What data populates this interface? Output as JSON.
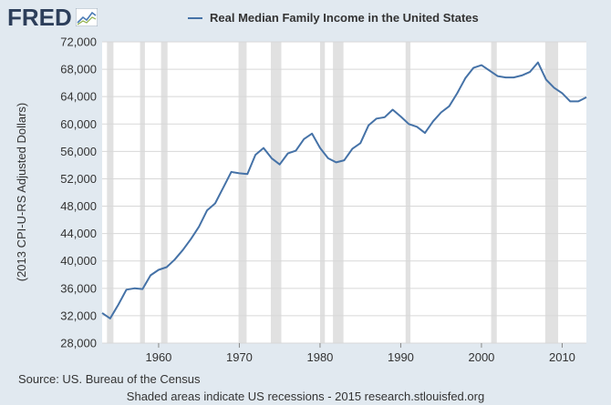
{
  "header": {
    "logo_text": "FRED",
    "logo_icon": "fred-chart-icon"
  },
  "legend": {
    "label": "Real Median Family Income in the United States"
  },
  "footer": {
    "source": "Source: US. Bureau of the Census",
    "note": "Shaded areas indicate US recessions - 2015 research.stlouisfed.org"
  },
  "colors": {
    "line": "#4572a7",
    "background": "#e1e9f0",
    "plot_bg": "#ffffff",
    "recession": "#e1e1e1",
    "grid": "#dddddd",
    "logo": "#2c3e5a"
  },
  "chart_data": {
    "type": "line",
    "title": "Real Median Family Income in the United States",
    "xlabel": "",
    "ylabel": "(2013 CPI-U-RS Adjusted Dollars)",
    "xlim": [
      1953,
      2013
    ],
    "ylim": [
      28000,
      72000
    ],
    "grid": "horizontal",
    "legend_position": "top",
    "x_ticks": [
      1960,
      1970,
      1980,
      1990,
      2000,
      2010
    ],
    "y_ticks": [
      28000,
      32000,
      36000,
      40000,
      44000,
      48000,
      52000,
      56000,
      60000,
      64000,
      68000,
      72000
    ],
    "y_tick_labels": [
      "28,000",
      "32,000",
      "36,000",
      "40,000",
      "44,000",
      "48,000",
      "52,000",
      "56,000",
      "60,000",
      "64,000",
      "68,000",
      "72,000"
    ],
    "recessions": [
      [
        1953.6,
        1954.4
      ],
      [
        1957.7,
        1958.3
      ],
      [
        1960.3,
        1961.1
      ],
      [
        1969.9,
        1970.9
      ],
      [
        1973.9,
        1975.2
      ],
      [
        1980.0,
        1980.6
      ],
      [
        1981.6,
        1982.9
      ],
      [
        1990.6,
        1991.2
      ],
      [
        2001.2,
        2001.9
      ],
      [
        2007.9,
        2009.5
      ]
    ],
    "series": [
      {
        "name": "Real Median Family Income in the United States",
        "x": [
          1953,
          1954,
          1955,
          1956,
          1957,
          1958,
          1959,
          1960,
          1961,
          1962,
          1963,
          1964,
          1965,
          1966,
          1967,
          1968,
          1969,
          1970,
          1971,
          1972,
          1973,
          1974,
          1975,
          1976,
          1977,
          1978,
          1979,
          1980,
          1981,
          1982,
          1983,
          1984,
          1985,
          1986,
          1987,
          1988,
          1989,
          1990,
          1991,
          1992,
          1993,
          1994,
          1995,
          1996,
          1997,
          1998,
          1999,
          2000,
          2001,
          2002,
          2003,
          2004,
          2005,
          2006,
          2007,
          2008,
          2009,
          2010,
          2011,
          2012,
          2013
        ],
        "values": [
          32400,
          31600,
          33600,
          35800,
          36000,
          35900,
          37900,
          38700,
          39100,
          40200,
          41600,
          43200,
          45000,
          47400,
          48400,
          50700,
          53000,
          52800,
          52700,
          55500,
          56500,
          55000,
          54100,
          55700,
          56100,
          57800,
          58600,
          56500,
          55000,
          54400,
          54700,
          56400,
          57200,
          59800,
          60800,
          61000,
          62100,
          61100,
          60000,
          59600,
          58700,
          60400,
          61700,
          62600,
          64500,
          66700,
          68200,
          68600,
          67800,
          67000,
          66800,
          66800,
          67100,
          67600,
          69000,
          66500,
          65300,
          64500,
          63300,
          63300,
          63900
        ]
      }
    ]
  }
}
